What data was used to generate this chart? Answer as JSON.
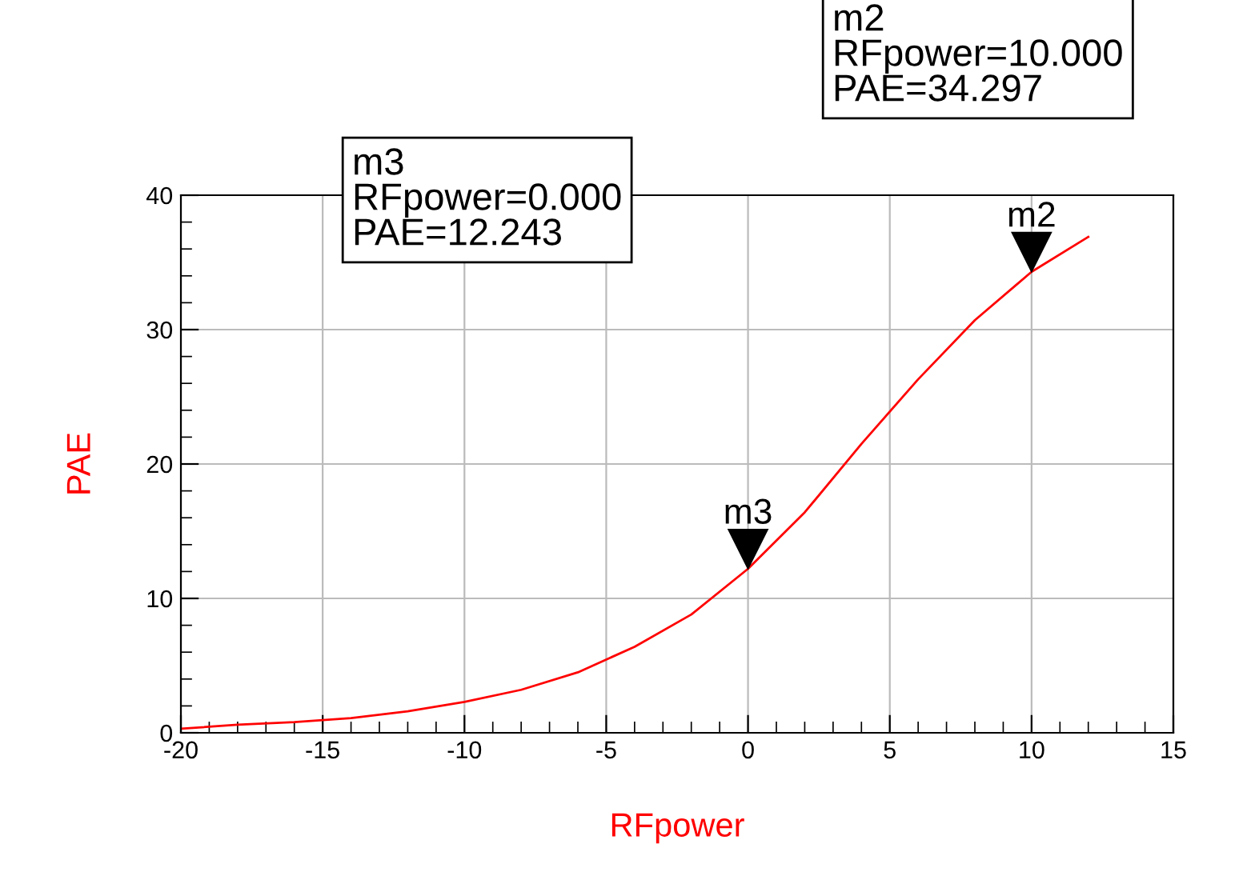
{
  "chart_data": {
    "type": "line",
    "xlabel": "RFpower",
    "ylabel": "PAE",
    "x": [
      -20,
      -18,
      -16,
      -14,
      -12,
      -10,
      -8,
      -6,
      -4,
      -2,
      0,
      2,
      4,
      6,
      8,
      10,
      12
    ],
    "series": [
      {
        "color": "#ff0000",
        "values": [
          0.3,
          0.6,
          0.8,
          1.1,
          1.6,
          2.3,
          3.2,
          4.5,
          6.4,
          8.8,
          12.2,
          16.4,
          21.5,
          26.3,
          30.7,
          34.3,
          36.9
        ]
      }
    ],
    "xlim": [
      -20,
      15
    ],
    "xticks": [
      -20,
      -15,
      -10,
      -5,
      0,
      5,
      10,
      15
    ],
    "ylim": [
      0,
      40
    ],
    "yticks": [
      0,
      10,
      20,
      30,
      40
    ],
    "grid": true,
    "marker": "none",
    "line_style": "solid",
    "annotations": [
      {
        "text": "m3",
        "x": 0,
        "y": 12.2
      },
      "m3\nRFpower=0.000\nPAE=12.243",
      {
        "text": "m2",
        "x": 10,
        "y": 34.3
      },
      "m2\nRFpower=10.000\nPAE=34.297"
    ]
  }
}
